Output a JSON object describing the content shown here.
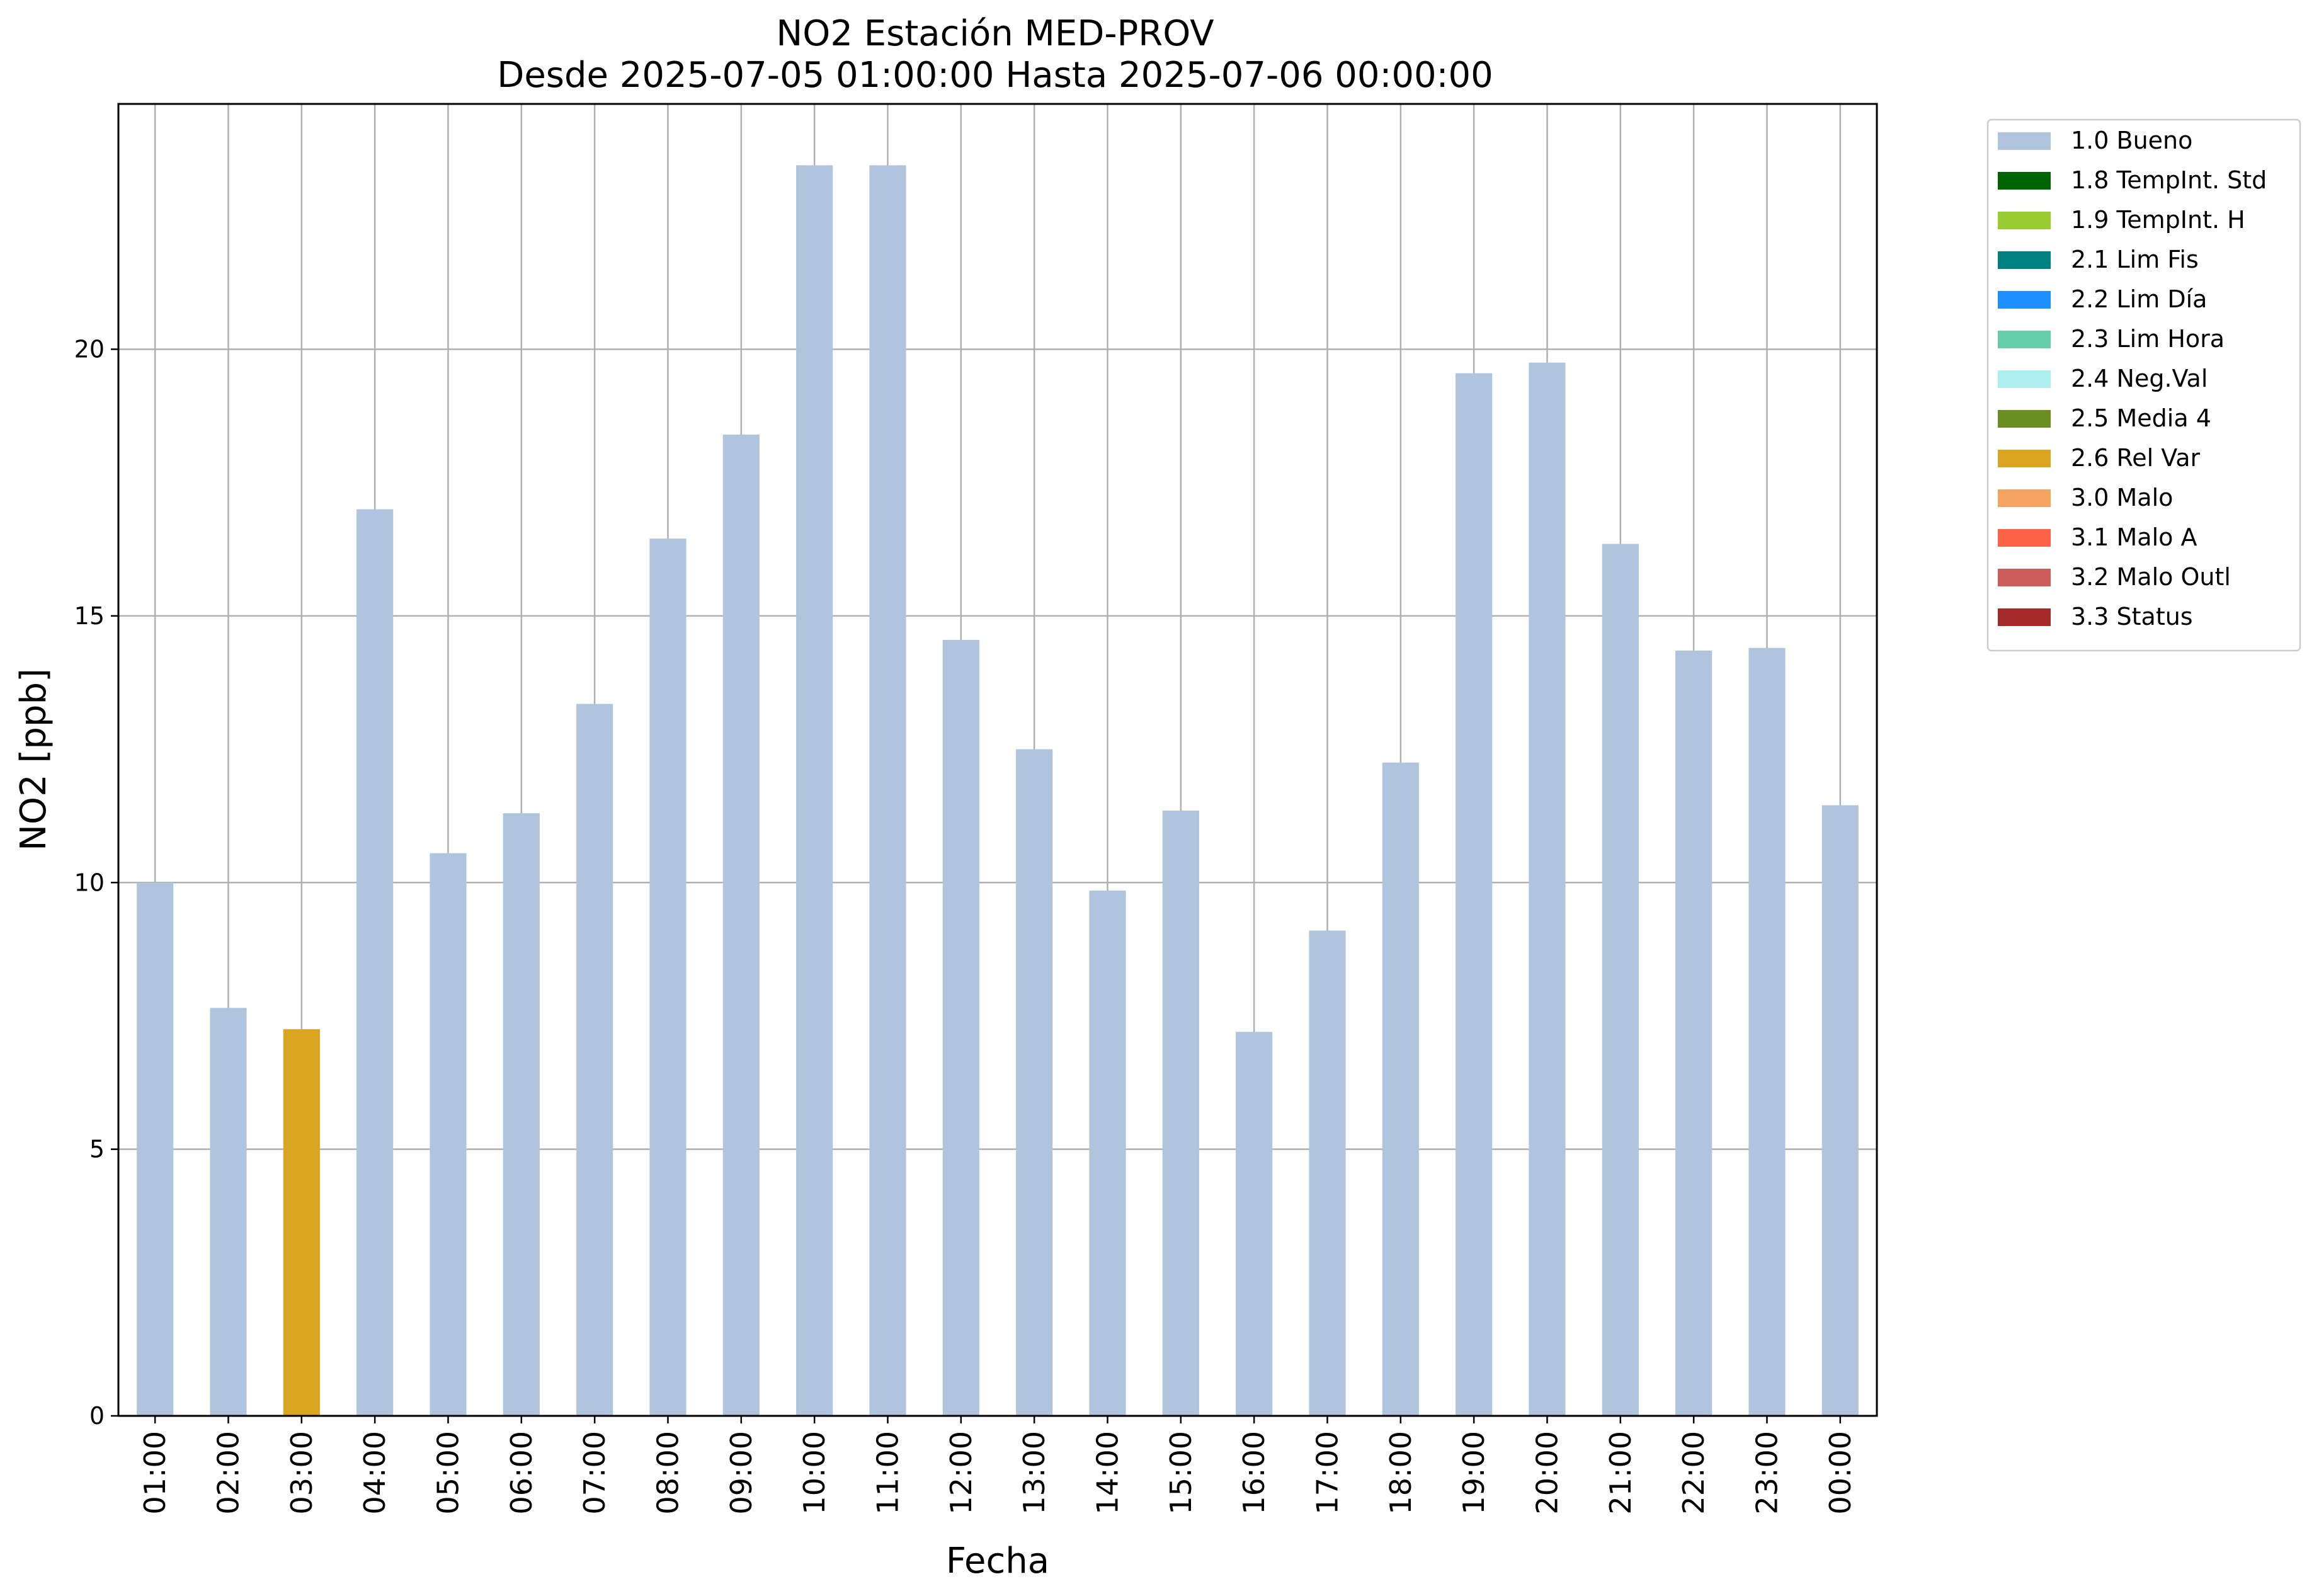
{
  "chart_data": {
    "type": "bar",
    "title": "NO2 Estación MED-PROV",
    "subtitle": "Desde 2025-07-05 01:00:00 Hasta 2025-07-06 00:00:00",
    "xlabel": "Fecha",
    "ylabel": "NO2 [ppb]",
    "ylim": [
      0,
      24.6
    ],
    "yticks": [
      "0",
      "5",
      "10",
      "15",
      "20"
    ],
    "grid": true,
    "legend_position": "outside-top-right",
    "categories": [
      "01:00",
      "02:00",
      "03:00",
      "04:00",
      "05:00",
      "06:00",
      "07:00",
      "08:00",
      "09:00",
      "10:00",
      "11:00",
      "12:00",
      "13:00",
      "14:00",
      "15:00",
      "16:00",
      "17:00",
      "18:00",
      "19:00",
      "20:00",
      "21:00",
      "22:00",
      "23:00",
      "00:00"
    ],
    "values": [
      10.0,
      7.65,
      7.25,
      17.0,
      10.55,
      11.3,
      13.35,
      16.45,
      18.4,
      23.45,
      23.45,
      14.55,
      12.5,
      9.85,
      11.35,
      7.2,
      9.1,
      12.25,
      19.55,
      19.75,
      16.35,
      14.35,
      14.4,
      11.45
    ],
    "flags": [
      "1.0 Bueno",
      "1.0 Bueno",
      "2.6 Rel Var",
      "1.0 Bueno",
      "1.0 Bueno",
      "1.0 Bueno",
      "1.0 Bueno",
      "1.0 Bueno",
      "1.0 Bueno",
      "1.0 Bueno",
      "1.0 Bueno",
      "1.0 Bueno",
      "1.0 Bueno",
      "1.0 Bueno",
      "1.0 Bueno",
      "1.0 Bueno",
      "1.0 Bueno",
      "1.0 Bueno",
      "1.0 Bueno",
      "1.0 Bueno",
      "1.0 Bueno",
      "1.0 Bueno",
      "1.0 Bueno",
      "1.0 Bueno"
    ],
    "legend": [
      {
        "label": "1.0 Bueno",
        "color": "#b0c4de"
      },
      {
        "label": "1.8 TempInt. Std",
        "color": "#006400"
      },
      {
        "label": "1.9 TempInt. H",
        "color": "#9acd32"
      },
      {
        "label": "2.1 Lim Fis",
        "color": "#008080"
      },
      {
        "label": "2.2 Lim Día",
        "color": "#1e90ff"
      },
      {
        "label": "2.3 Lim Hora",
        "color": "#66cdaa"
      },
      {
        "label": "2.4 Neg.Val",
        "color": "#afeeee"
      },
      {
        "label": "2.5 Media 4",
        "color": "#6b8e23"
      },
      {
        "label": "2.6 Rel Var",
        "color": "#daa520"
      },
      {
        "label": "3.0 Malo",
        "color": "#f4a460"
      },
      {
        "label": "3.1 Malo A",
        "color": "#ff6347"
      },
      {
        "label": "3.2 Malo Outl",
        "color": "#cd5c5c"
      },
      {
        "label": "3.3 Status",
        "color": "#a52a2a"
      }
    ]
  }
}
